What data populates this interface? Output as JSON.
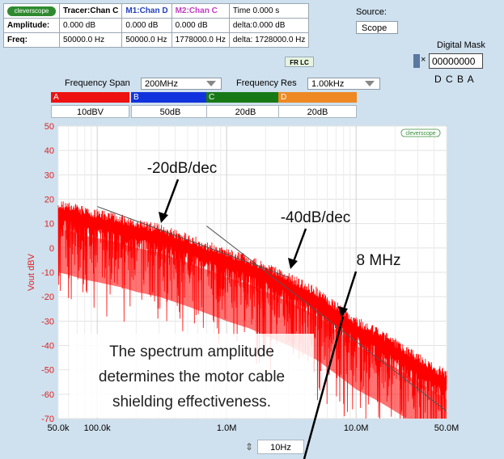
{
  "header": {
    "logo_text": "cleverscope",
    "rows": [
      [
        "Tracer:Chan C",
        "M1:Chan D",
        "M2:Chan C",
        "Time 0.000 s"
      ],
      [
        "Amplitude:",
        "0.000 dB",
        "0.000 dB",
        "0.000 dB",
        "delta:0.000 dB"
      ],
      [
        "Freq:",
        "50000.0 Hz",
        "50000.0 Hz",
        "1778000.0 Hz",
        "delta: 1728000.0 Hz"
      ]
    ],
    "col_colors": [
      "#000000",
      "#1f3fbf",
      "#c03cc0",
      "#000000"
    ]
  },
  "source": {
    "label": "Source:",
    "value": "Scope"
  },
  "digital_mask": {
    "label": "Digital Mask",
    "value": "00000000",
    "prefix": "×",
    "letters": "D C B A"
  },
  "frlc_label": "FR LC",
  "controls": {
    "span_label": "Frequency Span",
    "span_value": "200MHz",
    "res_label": "Frequency Res",
    "res_value": "1.00kHz"
  },
  "channels": [
    {
      "letter": "A",
      "value": "10dBV",
      "color": "#ee1111"
    },
    {
      "letter": "B",
      "value": "50dB",
      "color": "#1133dd"
    },
    {
      "letter": "C",
      "value": "20dB",
      "color": "#177a17"
    },
    {
      "letter": "D",
      "value": "20dB",
      "color": "#ee8822"
    }
  ],
  "bottom_value": "10Hz",
  "bottom_spinner": "⇕",
  "chart_data": {
    "type": "line",
    "ylabel": "Vout dBV",
    "xlabel": "",
    "x_scale": "log",
    "xlim": [
      50000,
      50000000
    ],
    "ylim": [
      -70,
      50
    ],
    "xticks": [
      50000,
      100000,
      1000000,
      10000000,
      50000000
    ],
    "xtick_labels": [
      "50.0k",
      "100.0k",
      "1.0M",
      "10.0M",
      "50.0M"
    ],
    "yticks": [
      -70,
      -60,
      -50,
      -40,
      -30,
      -20,
      -10,
      0,
      10,
      20,
      30,
      40,
      50
    ],
    "grid": true,
    "watermark": "cleverscope",
    "series": [
      {
        "color": "#ff0000",
        "envelope_x": [
          50000,
          60000,
          80000,
          100000,
          150000,
          200000,
          300000,
          500000,
          800000,
          1000000,
          1500000,
          2000000,
          3000000,
          5000000,
          8000000,
          10000000,
          15000000,
          20000000,
          30000000,
          50000000
        ],
        "envelope_y": [
          20,
          19,
          17,
          16,
          14,
          12,
          10,
          6,
          2,
          0,
          -3,
          -6,
          -10,
          -16,
          -24,
          -28,
          -33,
          -37,
          -43,
          -50
        ]
      }
    ],
    "reference_lines": [
      {
        "x": [
          100000,
          3000000
        ],
        "y": [
          17,
          -12
        ]
      },
      {
        "x": [
          700000,
          50000000
        ],
        "y": [
          9,
          -67
        ]
      }
    ],
    "annotations": [
      {
        "text": "-20dB/dec",
        "x": 260000,
        "y": 33
      },
      {
        "text": "-40dB/dec",
        "x": 2000000,
        "y": 9
      },
      {
        "text": "8 MHz",
        "x": 9000000,
        "y": -5
      },
      {
        "text": "The spectrum amplitude determines the motor cable shielding effectiveness.",
        "x": 1000000,
        "y": -50
      }
    ]
  }
}
